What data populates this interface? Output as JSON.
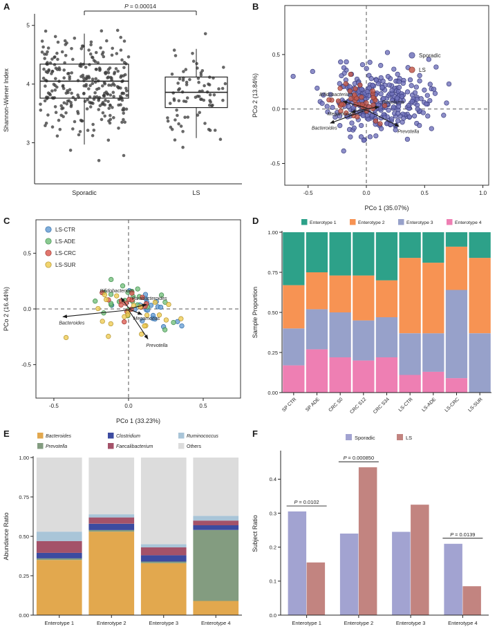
{
  "figure": {
    "background": "#ffffff",
    "panels": [
      {
        "label": "A"
      },
      {
        "label": "B"
      },
      {
        "label": "C"
      },
      {
        "label": "D"
      },
      {
        "label": "E"
      },
      {
        "label": "F"
      }
    ]
  },
  "chart_data": [
    {
      "panel": "A",
      "type": "boxplot-jitter",
      "ylabel": "Shannon-Wiener Index",
      "categories": [
        "Sporadic",
        "LS"
      ],
      "ylim": [
        2.3,
        5.15
      ],
      "ytick_values": [
        3,
        4,
        5
      ],
      "ytick_labels": [
        "3",
        "4",
        "5"
      ],
      "significance": {
        "label": "P = 0.00014"
      },
      "point_color": "#3d3d3d",
      "groups": [
        {
          "name": "Sporadic",
          "n": 290,
          "median": 4.05,
          "q1": 3.76,
          "q3": 4.34,
          "whisker_low": 2.97,
          "whisker_high": 4.86,
          "mean": 4.02,
          "sd": 0.42,
          "min": 2.45,
          "max": 4.95
        },
        {
          "name": "LS",
          "n": 80,
          "median": 3.86,
          "q1": 3.6,
          "q3": 4.12,
          "whisker_low": 3.08,
          "whisker_high": 4.6,
          "mean": 3.83,
          "sd": 0.42,
          "min": 2.5,
          "max": 4.9
        }
      ]
    },
    {
      "panel": "B",
      "type": "pcoa-scatter",
      "xlabel": "PCo 1 (35.07%)",
      "ylabel": "PCo 2 (13.84%)",
      "xlim": [
        -0.7,
        1.05
      ],
      "ylim": [
        -0.7,
        0.95
      ],
      "xtick_values": [
        -0.5,
        0,
        0.5,
        1
      ],
      "xtick_labels": [
        "-0.5",
        "0.0",
        "0.5",
        "1.0"
      ],
      "ytick_values": [
        -0.5,
        0,
        0.5
      ],
      "ytick_labels": [
        "-0.5",
        "0.0",
        "0.5"
      ],
      "seed": 11,
      "taper": true,
      "groups": [
        {
          "name": "Sporadic",
          "color": "#7072ba",
          "edge": "#3d3f80",
          "n": 310,
          "cx": 0.1,
          "cy": 0.07,
          "sx": 0.21,
          "sy": 0.16
        },
        {
          "name": "LS",
          "color": "#c35a4d",
          "edge": "#83362c",
          "n": 40,
          "cx": -0.1,
          "cy": 0.05,
          "sx": 0.11,
          "sy": 0.09
        }
      ],
      "arrows": [
        {
          "label": "Bifidobacterium",
          "x1": 0,
          "y1": 0.01,
          "x2": -0.2,
          "y2": 0.07,
          "lx": -0.26,
          "ly": 0.12
        },
        {
          "label": "Roseburia",
          "x1": 0,
          "y1": 0,
          "x2": 0.11,
          "y2": 0.02,
          "lx": 0.23,
          "ly": 0.05
        },
        {
          "label": "Megamonas",
          "x1": 0,
          "y1": 0,
          "x2": -0.13,
          "y2": -0.03,
          "lx": -0.22,
          "ly": -0.06
        },
        {
          "label": "Bacteroides",
          "x1": 0,
          "y1": -0.01,
          "x2": -0.31,
          "y2": -0.13,
          "lx": -0.36,
          "ly": -0.19
        },
        {
          "label": "Prevotella",
          "x1": 0,
          "y1": -0.01,
          "x2": 0.28,
          "y2": -0.16,
          "lx": 0.36,
          "ly": -0.22
        }
      ],
      "legend": {
        "position": "top-right",
        "items": [
          "Sporadic",
          "LS"
        ]
      }
    },
    {
      "panel": "C",
      "type": "pcoa-scatter",
      "xlabel": "PCo 1 (33.23%)",
      "ylabel": "PCo 2 (16.44%)",
      "xlim": [
        -0.62,
        0.75
      ],
      "ylim": [
        -0.8,
        0.8
      ],
      "xtick_values": [
        -0.5,
        0,
        0.5
      ],
      "xtick_labels": [
        "-0.5",
        "0.0",
        "0.5"
      ],
      "ytick_values": [
        -0.5,
        0,
        0.5
      ],
      "ytick_labels": [
        "-0.5",
        "0.0",
        "0.5"
      ],
      "seed": 23,
      "diag": true,
      "groups": [
        {
          "name": "LS-CTR",
          "color": "#699fd3",
          "edge": "#2f6ca8",
          "n": 20,
          "cx": 0.07,
          "cy": 0.03,
          "sx": 0.13,
          "sy": 0.09
        },
        {
          "name": "LS-ADE",
          "color": "#77c17e",
          "edge": "#3d8a4a",
          "n": 24,
          "cx": 0.0,
          "cy": 0.06,
          "sx": 0.14,
          "sy": 0.1
        },
        {
          "name": "LS-CRC",
          "color": "#dd5f55",
          "edge": "#9e342c",
          "n": 15,
          "cx": 0.01,
          "cy": 0.03,
          "sx": 0.1,
          "sy": 0.08
        },
        {
          "name": "LS-SUR",
          "color": "#efcc55",
          "edge": "#b2922b",
          "n": 22,
          "cx": 0.02,
          "cy": -0.01,
          "sx": 0.17,
          "sy": 0.11
        }
      ],
      "arrows": [
        {
          "label": "Bifidobacterium",
          "x1": 0,
          "y1": 0.01,
          "x2": -0.05,
          "y2": 0.1,
          "lx": -0.08,
          "ly": 0.15
        },
        {
          "label": "Parabacteroides",
          "x1": 0,
          "y1": 0,
          "x2": 0.12,
          "y2": 0.04,
          "lx": 0.14,
          "ly": 0.08
        },
        {
          "label": "Megamonas",
          "x1": 0,
          "y1": 0,
          "x2": 0.09,
          "y2": -0.05,
          "lx": 0.12,
          "ly": -0.1
        },
        {
          "label": "Bacteroides",
          "x1": 0,
          "y1": -0.01,
          "x2": -0.44,
          "y2": -0.07,
          "lx": -0.38,
          "ly": -0.14
        },
        {
          "label": "Prevotella",
          "x1": 0,
          "y1": -0.01,
          "x2": 0.13,
          "y2": -0.27,
          "lx": 0.19,
          "ly": -0.34
        }
      ],
      "legend": {
        "position": "top-left",
        "items": [
          "LS-CTR",
          "LS-ADE",
          "LS-CRC",
          "LS-SUR"
        ]
      }
    },
    {
      "panel": "D",
      "type": "stacked-bar",
      "ylabel": "Sample Proportion",
      "categories": [
        "SP CTR",
        "SP ADE",
        "CRC S0",
        "CRC S12",
        "CRC S34",
        "LS-CTR",
        "LS-ADE",
        "LS-CRC",
        "LS-SUR"
      ],
      "ytick_values": [
        0,
        0.25,
        0.5,
        0.75,
        1
      ],
      "ytick_labels": [
        "0.00",
        "0.25",
        "0.50",
        "0.75",
        "1.00"
      ],
      "series": [
        {
          "name": "Enterotype 4",
          "color": "#ee7fb3",
          "values": [
            0.17,
            0.27,
            0.22,
            0.2,
            0.22,
            0.11,
            0.13,
            0.09,
            0.0
          ]
        },
        {
          "name": "Enterotype 3",
          "color": "#97a1ca",
          "values": [
            0.23,
            0.25,
            0.28,
            0.25,
            0.25,
            0.26,
            0.24,
            0.55,
            0.37
          ]
        },
        {
          "name": "Enterotype 2",
          "color": "#f79353",
          "values": [
            0.27,
            0.23,
            0.23,
            0.28,
            0.23,
            0.47,
            0.44,
            0.27,
            0.47
          ]
        },
        {
          "name": "Enterotype 1",
          "color": "#2da189",
          "values": [
            0.33,
            0.25,
            0.27,
            0.27,
            0.3,
            0.16,
            0.19,
            0.09,
            0.16
          ]
        }
      ],
      "legend": {
        "items": [
          "Enterotype 1",
          "Enterotype 2",
          "Enterotype 3",
          "Enterotype 4"
        ]
      }
    },
    {
      "panel": "E",
      "type": "stacked-bar",
      "ylabel": "Abundance Ratio",
      "categories": [
        "Enterotype 1",
        "Enterotype 2",
        "Enterotype 3",
        "Enterotype 4"
      ],
      "ytick_values": [
        0,
        0.25,
        0.5,
        0.75,
        1
      ],
      "ytick_labels": [
        "0.00",
        "0.25",
        "0.50",
        "0.75",
        "1.00"
      ],
      "series": [
        {
          "name": "Bacteroides",
          "color": "#e2a84e",
          "italic": true,
          "values": [
            0.35,
            0.53,
            0.33,
            0.09
          ]
        },
        {
          "name": "Prevotella",
          "color": "#839c80",
          "italic": true,
          "values": [
            0.01,
            0.01,
            0.01,
            0.45
          ]
        },
        {
          "name": "Clostridium",
          "color": "#3c4ba0",
          "italic": true,
          "values": [
            0.035,
            0.04,
            0.04,
            0.03
          ]
        },
        {
          "name": "Faecalibacterium",
          "color": "#a45269",
          "italic": true,
          "values": [
            0.075,
            0.04,
            0.05,
            0.03
          ]
        },
        {
          "name": "Ruminococcus",
          "color": "#a9c5d8",
          "italic": true,
          "values": [
            0.06,
            0.02,
            0.02,
            0.03
          ]
        },
        {
          "name": "Others",
          "color": "#dcdcdc",
          "italic": false,
          "values": [
            0.47,
            0.36,
            0.55,
            0.37
          ]
        }
      ],
      "legend": {
        "items": [
          "Bacteroides",
          "Prevotella",
          "Clostridium",
          "Faecalibacterium",
          "Ruminococcus",
          "Others"
        ],
        "rows": 2
      }
    },
    {
      "panel": "F",
      "type": "grouped-bar",
      "ylabel": "Subject Ratio",
      "categories": [
        "Enterotype 1",
        "Enterotype 2",
        "Enterotype 3",
        "Enterotype 4"
      ],
      "ylim": [
        0,
        0.48
      ],
      "ytick_values": [
        0,
        0.1,
        0.2,
        0.3,
        0.4
      ],
      "ytick_labels": [
        "0.0",
        "0.1",
        "0.2",
        "0.3",
        "0.4"
      ],
      "series": [
        {
          "name": "Sporadic",
          "color": "#a2a3d1",
          "values": [
            0.305,
            0.24,
            0.245,
            0.21
          ]
        },
        {
          "name": "LS",
          "color": "#c28480",
          "values": [
            0.155,
            0.435,
            0.325,
            0.085
          ]
        }
      ],
      "annotations": [
        {
          "category_index": 0,
          "label": "P = 0.0102"
        },
        {
          "category_index": 1,
          "label": "P = 0.000850"
        },
        {
          "category_index": 3,
          "label": "P = 0.0139"
        }
      ],
      "legend": {
        "items": [
          "Sporadic",
          "LS"
        ]
      }
    }
  ]
}
